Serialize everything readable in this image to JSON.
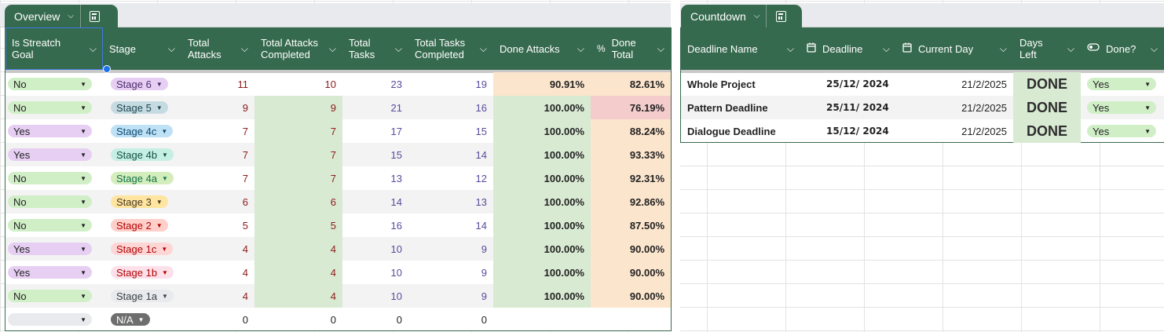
{
  "colors": {
    "header": "#366a4e",
    "greenBg": "#d9ead3",
    "orangeBg": "#fce5cd",
    "redBg": "#f4cccc",
    "chipNo": "#d1efc7",
    "chipYes": "#e6cff2"
  },
  "overview": {
    "title": "Overview",
    "headers": [
      {
        "label": "Is Streatch Goal",
        "icon": null
      },
      {
        "label": "Stage",
        "icon": null
      },
      {
        "label": "Total Attacks",
        "icon": null
      },
      {
        "label": "Total Attacks Completed",
        "icon": null
      },
      {
        "label": "Total Tasks",
        "icon": null
      },
      {
        "label": "Total Tasks Completed",
        "icon": null
      },
      {
        "label": "Done Attacks",
        "icon": null
      },
      {
        "label": "Done Total",
        "icon": "%"
      }
    ],
    "rows": [
      {
        "stretch": "No",
        "stage": "Stage 6",
        "attacks": "11",
        "attacksDone": "10",
        "tasks": "23",
        "tasksDone": "19",
        "doneAttacks": "90.91%",
        "doneTotal": "82.61%"
      },
      {
        "stretch": "No",
        "stage": "Stage 5",
        "attacks": "9",
        "attacksDone": "9",
        "tasks": "21",
        "tasksDone": "16",
        "doneAttacks": "100.00%",
        "doneTotal": "76.19%"
      },
      {
        "stretch": "Yes",
        "stage": "Stage 4c",
        "attacks": "7",
        "attacksDone": "7",
        "tasks": "17",
        "tasksDone": "15",
        "doneAttacks": "100.00%",
        "doneTotal": "88.24%"
      },
      {
        "stretch": "Yes",
        "stage": "Stage 4b",
        "attacks": "7",
        "attacksDone": "7",
        "tasks": "15",
        "tasksDone": "14",
        "doneAttacks": "100.00%",
        "doneTotal": "93.33%"
      },
      {
        "stretch": "No",
        "stage": "Stage 4a",
        "attacks": "7",
        "attacksDone": "7",
        "tasks": "13",
        "tasksDone": "12",
        "doneAttacks": "100.00%",
        "doneTotal": "92.31%"
      },
      {
        "stretch": "No",
        "stage": "Stage 3",
        "attacks": "6",
        "attacksDone": "6",
        "tasks": "14",
        "tasksDone": "13",
        "doneAttacks": "100.00%",
        "doneTotal": "92.86%"
      },
      {
        "stretch": "No",
        "stage": "Stage 2",
        "attacks": "5",
        "attacksDone": "5",
        "tasks": "16",
        "tasksDone": "14",
        "doneAttacks": "100.00%",
        "doneTotal": "87.50%"
      },
      {
        "stretch": "Yes",
        "stage": "Stage 1c",
        "attacks": "4",
        "attacksDone": "4",
        "tasks": "10",
        "tasksDone": "9",
        "doneAttacks": "100.00%",
        "doneTotal": "90.00%"
      },
      {
        "stretch": "Yes",
        "stage": "Stage 1b",
        "attacks": "4",
        "attacksDone": "4",
        "tasks": "10",
        "tasksDone": "9",
        "doneAttacks": "100.00%",
        "doneTotal": "90.00%"
      },
      {
        "stretch": "No",
        "stage": "Stage 1a",
        "attacks": "4",
        "attacksDone": "4",
        "tasks": "10",
        "tasksDone": "9",
        "doneAttacks": "100.00%",
        "doneTotal": "90.00%"
      },
      {
        "stretch": "",
        "stage": "N/A",
        "attacks": "0",
        "attacksDone": "0",
        "tasks": "0",
        "tasksDone": "0",
        "doneAttacks": "",
        "doneTotal": ""
      }
    ],
    "stageColors": {
      "Stage 6": {
        "bg": "#e6cff2",
        "fg": "#4a2a6b"
      },
      "Stage 5": {
        "bg": "#c6dbe1",
        "fg": "#1e4652"
      },
      "Stage 4c": {
        "bg": "#bfe1f6",
        "fg": "#0b4a6e"
      },
      "Stage 4b": {
        "bg": "#c6efe3",
        "fg": "#0f5040"
      },
      "Stage 4a": {
        "bg": "#d4edbc",
        "fg": "#11734b"
      },
      "Stage 3": {
        "bg": "#ffe5a0",
        "fg": "#473821"
      },
      "Stage 2": {
        "bg": "#ffcfc9",
        "fg": "#b10202"
      },
      "Stage 1c": {
        "bg": "#ffd6d6",
        "fg": "#b10202"
      },
      "Stage 1b": {
        "bg": "#fde1ea",
        "fg": "#b10202"
      },
      "Stage 1a": {
        "bg": "#e8eaed",
        "fg": "#3c4043"
      },
      "N/A": {
        "bg": "#6e6e6e",
        "fg": "#ffffff"
      }
    },
    "bgStyles": {
      "attacksDone": [
        "none",
        "green",
        "green",
        "green",
        "green",
        "green",
        "green",
        "green",
        "green",
        "green",
        "none"
      ],
      "doneAttacks": [
        "orange",
        "green",
        "green",
        "green",
        "green",
        "green",
        "green",
        "green",
        "green",
        "green",
        "none"
      ],
      "doneTotal": [
        "orange",
        "red",
        "orange",
        "orange",
        "orange",
        "orange",
        "orange",
        "orange",
        "orange",
        "orange",
        "none"
      ]
    }
  },
  "countdown": {
    "title": "Countdown",
    "headers": [
      {
        "label": "Deadline Name",
        "icon": null
      },
      {
        "label": "Deadline",
        "icon": "calendar"
      },
      {
        "label": "Current Day",
        "icon": "calendar"
      },
      {
        "label": "Days Left",
        "icon": null
      },
      {
        "label": "Done?",
        "icon": "toggle"
      }
    ],
    "rows": [
      {
        "name": "Whole Project",
        "deadline": "25/12/ 2024",
        "current": "21/2/2025",
        "daysLeft": "DONE",
        "done": "Yes"
      },
      {
        "name": "Pattern Deadline",
        "deadline": "25/11/ 2024",
        "current": "21/2/2025",
        "daysLeft": "DONE",
        "done": "Yes"
      },
      {
        "name": "Dialogue Deadline",
        "deadline": "15/12/ 2024",
        "current": "21/2/2025",
        "daysLeft": "DONE",
        "done": "Yes"
      }
    ]
  }
}
